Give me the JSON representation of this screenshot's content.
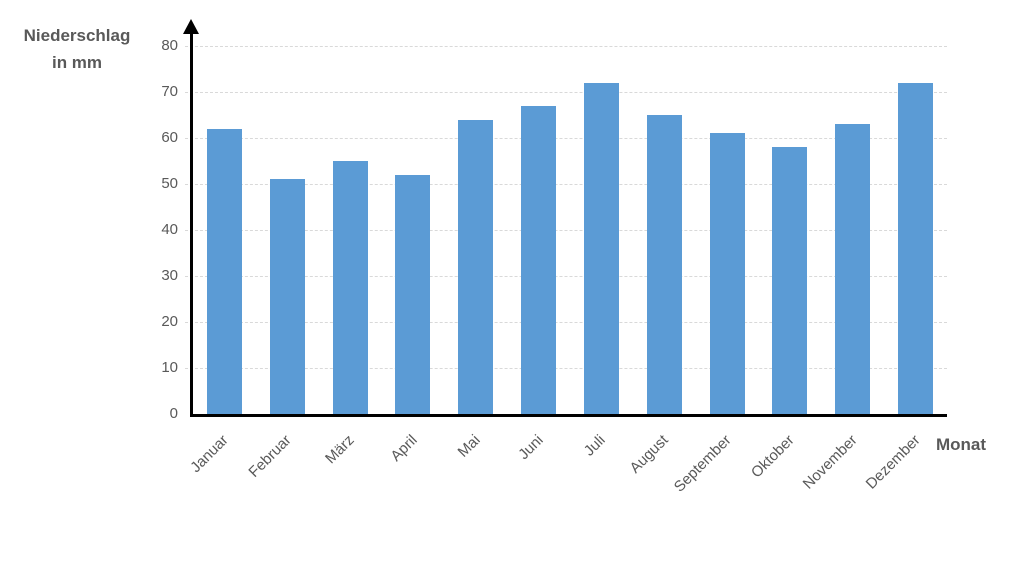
{
  "chart_data": {
    "type": "bar",
    "title": "Niederschlag in mm",
    "ylabel": "Niederschlag in mm",
    "ylabel_lines": [
      "Niederschlag",
      "in mm"
    ],
    "xlabel": "Monat",
    "categories": [
      "Januar",
      "Februar",
      "März",
      "April",
      "Mai",
      "Juni",
      "Juli",
      "August",
      "September",
      "Oktober",
      "November",
      "Dezember"
    ],
    "values": [
      62,
      51,
      55,
      52,
      64,
      67,
      72,
      65,
      61,
      58,
      63,
      72
    ],
    "ylim": [
      0,
      80
    ],
    "yticks": [
      0,
      10,
      20,
      30,
      40,
      50,
      60,
      70,
      80
    ],
    "grid": true,
    "legend_position": "none",
    "colors": {
      "bar": "#5B9BD5",
      "gridline": "#D9D9D9",
      "axis": "#000000",
      "text": "#595959"
    }
  }
}
